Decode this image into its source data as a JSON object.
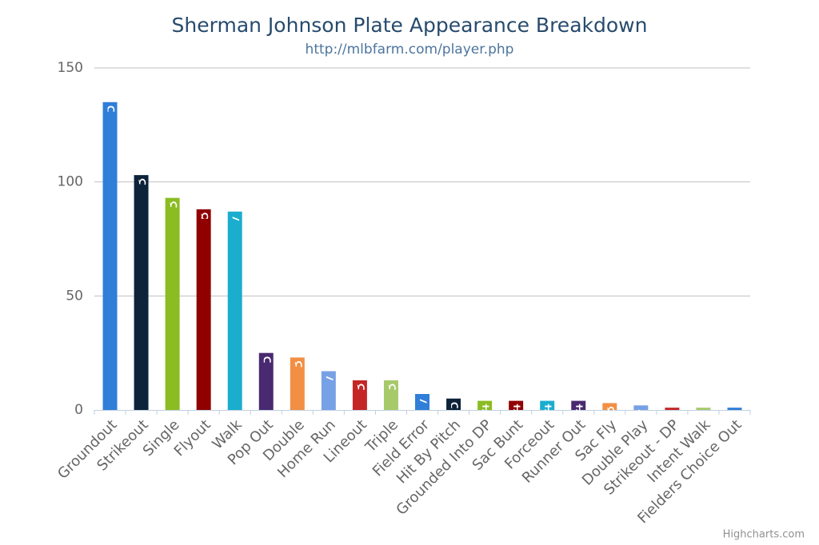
{
  "chart_data": {
    "type": "bar",
    "title": "Sherman Johnson Plate Appearance Breakdown",
    "subtitle": "http://mlbfarm.com/player.php",
    "credits": "Highcharts.com",
    "categories": [
      "Groundout",
      "Strikeout",
      "Single",
      "Flyout",
      "Walk",
      "Pop Out",
      "Double",
      "Home Run",
      "Lineout",
      "Triple",
      "Field Error",
      "Hit By Pitch",
      "Grounded Into DP",
      "Sac Bunt",
      "Forceout",
      "Runner Out",
      "Sac Fly",
      "Double Play",
      "Strikeout - DP",
      "Intent Walk",
      "Fielders Choice Out"
    ],
    "values": [
      135,
      103,
      93,
      88,
      87,
      25,
      23,
      17,
      13,
      13,
      7,
      5,
      4,
      4,
      4,
      4,
      3,
      2,
      1,
      1,
      1
    ],
    "colors": [
      "#2f7ed8",
      "#0d233a",
      "#8bbc21",
      "#910000",
      "#1aadce",
      "#492970",
      "#f28f43",
      "#77a1e5",
      "#c42525",
      "#a6c96a"
    ],
    "ylim": [
      0,
      150
    ],
    "yticks": [
      0,
      50,
      100,
      150
    ],
    "grid": true
  }
}
